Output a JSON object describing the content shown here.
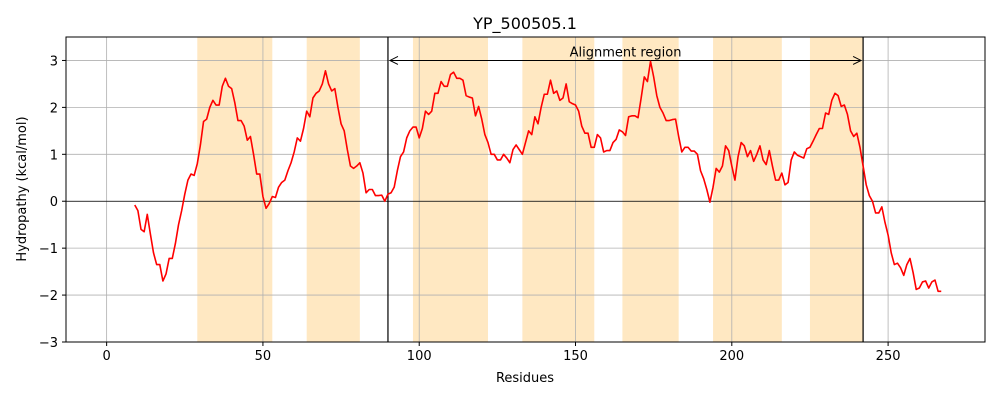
{
  "chart_data": {
    "type": "line",
    "title": "YP_500505.1",
    "xlabel": "Residues",
    "ylabel": "Hydropathy (kcal/mol)",
    "xlim": [
      -13,
      281
    ],
    "ylim": [
      -3,
      3.5
    ],
    "xticks": [
      0,
      50,
      100,
      150,
      200,
      250
    ],
    "yticks": [
      -3,
      -2,
      -1,
      0,
      1,
      2,
      3
    ],
    "grid": true,
    "line_color": "#ff0000",
    "band_color": "#ffe8c2",
    "bands": [
      [
        29,
        53
      ],
      [
        64,
        81
      ],
      [
        98,
        122
      ],
      [
        133,
        156
      ],
      [
        165,
        183
      ],
      [
        194,
        216
      ],
      [
        225,
        242
      ]
    ],
    "region": {
      "start": 90,
      "end": 242,
      "label": "Alignment region",
      "y": 3.0
    },
    "series": [
      {
        "x": [
          9,
          10,
          11,
          12,
          13,
          14,
          15,
          16,
          17,
          18,
          19,
          20,
          21,
          22,
          23,
          24,
          25,
          26,
          27,
          28,
          29,
          30,
          31,
          32,
          33,
          34,
          35,
          36,
          37,
          38,
          39,
          40,
          41,
          42,
          43,
          44,
          45,
          46,
          47,
          48,
          49,
          50,
          51,
          52,
          53,
          54,
          55,
          56,
          57,
          58,
          59,
          60,
          61,
          62,
          63,
          64,
          65,
          66,
          67,
          68,
          69,
          70,
          71,
          72,
          73,
          74,
          75,
          76,
          77,
          78,
          79,
          80,
          81,
          82,
          83,
          84,
          85,
          86,
          87,
          88,
          89,
          90,
          91,
          92,
          93,
          94,
          95,
          96,
          97,
          98,
          99,
          100,
          101,
          102,
          103,
          104,
          105,
          106,
          107,
          108,
          109,
          110,
          111,
          112,
          113,
          114,
          115,
          116,
          117,
          118,
          119,
          120,
          121,
          122,
          123,
          124,
          125,
          126,
          127,
          128,
          129,
          130,
          131,
          132,
          133,
          134,
          135,
          136,
          137,
          138,
          139,
          140,
          141,
          142,
          143,
          144,
          145,
          146,
          147,
          148,
          149,
          150,
          151,
          152,
          153,
          154,
          155,
          156,
          157,
          158,
          159,
          160,
          161,
          162,
          163,
          164,
          165,
          166,
          167,
          168,
          169,
          170,
          171,
          172,
          173,
          174,
          175,
          176,
          177,
          178,
          179,
          180,
          181,
          182,
          183,
          184,
          185,
          186,
          187,
          188,
          189,
          190,
          191,
          192,
          193,
          194,
          195,
          196,
          197,
          198,
          199,
          200,
          201,
          202,
          203,
          204,
          205,
          206,
          207,
          208,
          209,
          210,
          211,
          212,
          213,
          214,
          215,
          216,
          217,
          218,
          219,
          220,
          221,
          222,
          223,
          224,
          225,
          226,
          227,
          228,
          229,
          230,
          231,
          232,
          233,
          234,
          235,
          236,
          237,
          238,
          239,
          240,
          241,
          242,
          243,
          244,
          245,
          246,
          247,
          248,
          249,
          250,
          251,
          252,
          253,
          254,
          255,
          256,
          257,
          258,
          259,
          260,
          261,
          262,
          263,
          264,
          265,
          266,
          267
        ],
        "y": [
          -0.08,
          -0.2,
          -0.6,
          -0.65,
          -0.28,
          -0.7,
          -1.1,
          -1.35,
          -1.35,
          -1.7,
          -1.55,
          -1.22,
          -1.22,
          -0.9,
          -0.5,
          -0.2,
          0.15,
          0.45,
          0.58,
          0.55,
          0.8,
          1.2,
          1.7,
          1.75,
          2.0,
          2.15,
          2.05,
          2.05,
          2.45,
          2.62,
          2.45,
          2.4,
          2.1,
          1.72,
          1.72,
          1.6,
          1.3,
          1.38,
          1.0,
          0.58,
          0.58,
          0.1,
          -0.15,
          -0.05,
          0.1,
          0.08,
          0.3,
          0.4,
          0.45,
          0.65,
          0.82,
          1.05,
          1.35,
          1.28,
          1.55,
          1.92,
          1.8,
          2.2,
          2.3,
          2.35,
          2.5,
          2.78,
          2.5,
          2.35,
          2.4,
          2.0,
          1.65,
          1.5,
          1.1,
          0.75,
          0.7,
          0.75,
          0.82,
          0.6,
          0.18,
          0.25,
          0.25,
          0.12,
          0.12,
          0.13,
          0.0,
          0.15,
          0.18,
          0.3,
          0.65,
          0.95,
          1.05,
          1.35,
          1.5,
          1.58,
          1.58,
          1.35,
          1.55,
          1.92,
          1.85,
          1.92,
          2.3,
          2.3,
          2.55,
          2.45,
          2.45,
          2.7,
          2.75,
          2.62,
          2.62,
          2.58,
          2.25,
          2.22,
          2.2,
          1.82,
          2.02,
          1.75,
          1.42,
          1.25,
          1.0,
          1.0,
          0.88,
          0.88,
          1.0,
          0.92,
          0.82,
          1.1,
          1.2,
          1.1,
          1.0,
          1.25,
          1.5,
          1.42,
          1.8,
          1.65,
          2.0,
          2.28,
          2.28,
          2.58,
          2.3,
          2.35,
          2.15,
          2.2,
          2.5,
          2.12,
          2.08,
          2.05,
          1.92,
          1.6,
          1.45,
          1.45,
          1.15,
          1.15,
          1.42,
          1.35,
          1.05,
          1.08,
          1.08,
          1.25,
          1.32,
          1.52,
          1.48,
          1.4,
          1.8,
          1.82,
          1.82,
          1.78,
          2.2,
          2.65,
          2.55,
          2.98,
          2.65,
          2.25,
          2.0,
          1.88,
          1.72,
          1.72,
          1.74,
          1.75,
          1.38,
          1.05,
          1.15,
          1.15,
          1.07,
          1.07,
          1.0,
          0.65,
          0.48,
          0.25,
          -0.02,
          0.3,
          0.7,
          0.62,
          0.75,
          1.18,
          1.08,
          0.75,
          0.45,
          0.95,
          1.25,
          1.18,
          0.95,
          1.08,
          0.85,
          1.0,
          1.18,
          0.88,
          0.78,
          1.08,
          0.75,
          0.45,
          0.45,
          0.6,
          0.35,
          0.4,
          0.88,
          1.05,
          0.98,
          0.95,
          0.92,
          1.12,
          1.15,
          1.28,
          1.42,
          1.55,
          1.55,
          1.88,
          1.85,
          2.15,
          2.3,
          2.25,
          2.02,
          2.05,
          1.85,
          1.5,
          1.38,
          1.45,
          1.15,
          0.75,
          0.35,
          0.12,
          0.0,
          -0.25,
          -0.25,
          -0.12,
          -0.45,
          -0.72,
          -1.1,
          -1.35,
          -1.32,
          -1.42,
          -1.58,
          -1.35,
          -1.22,
          -1.52,
          -1.88,
          -1.85,
          -1.72,
          -1.7,
          -1.85,
          -1.72,
          -1.68,
          -1.92,
          -1.92
        ]
      }
    ]
  }
}
